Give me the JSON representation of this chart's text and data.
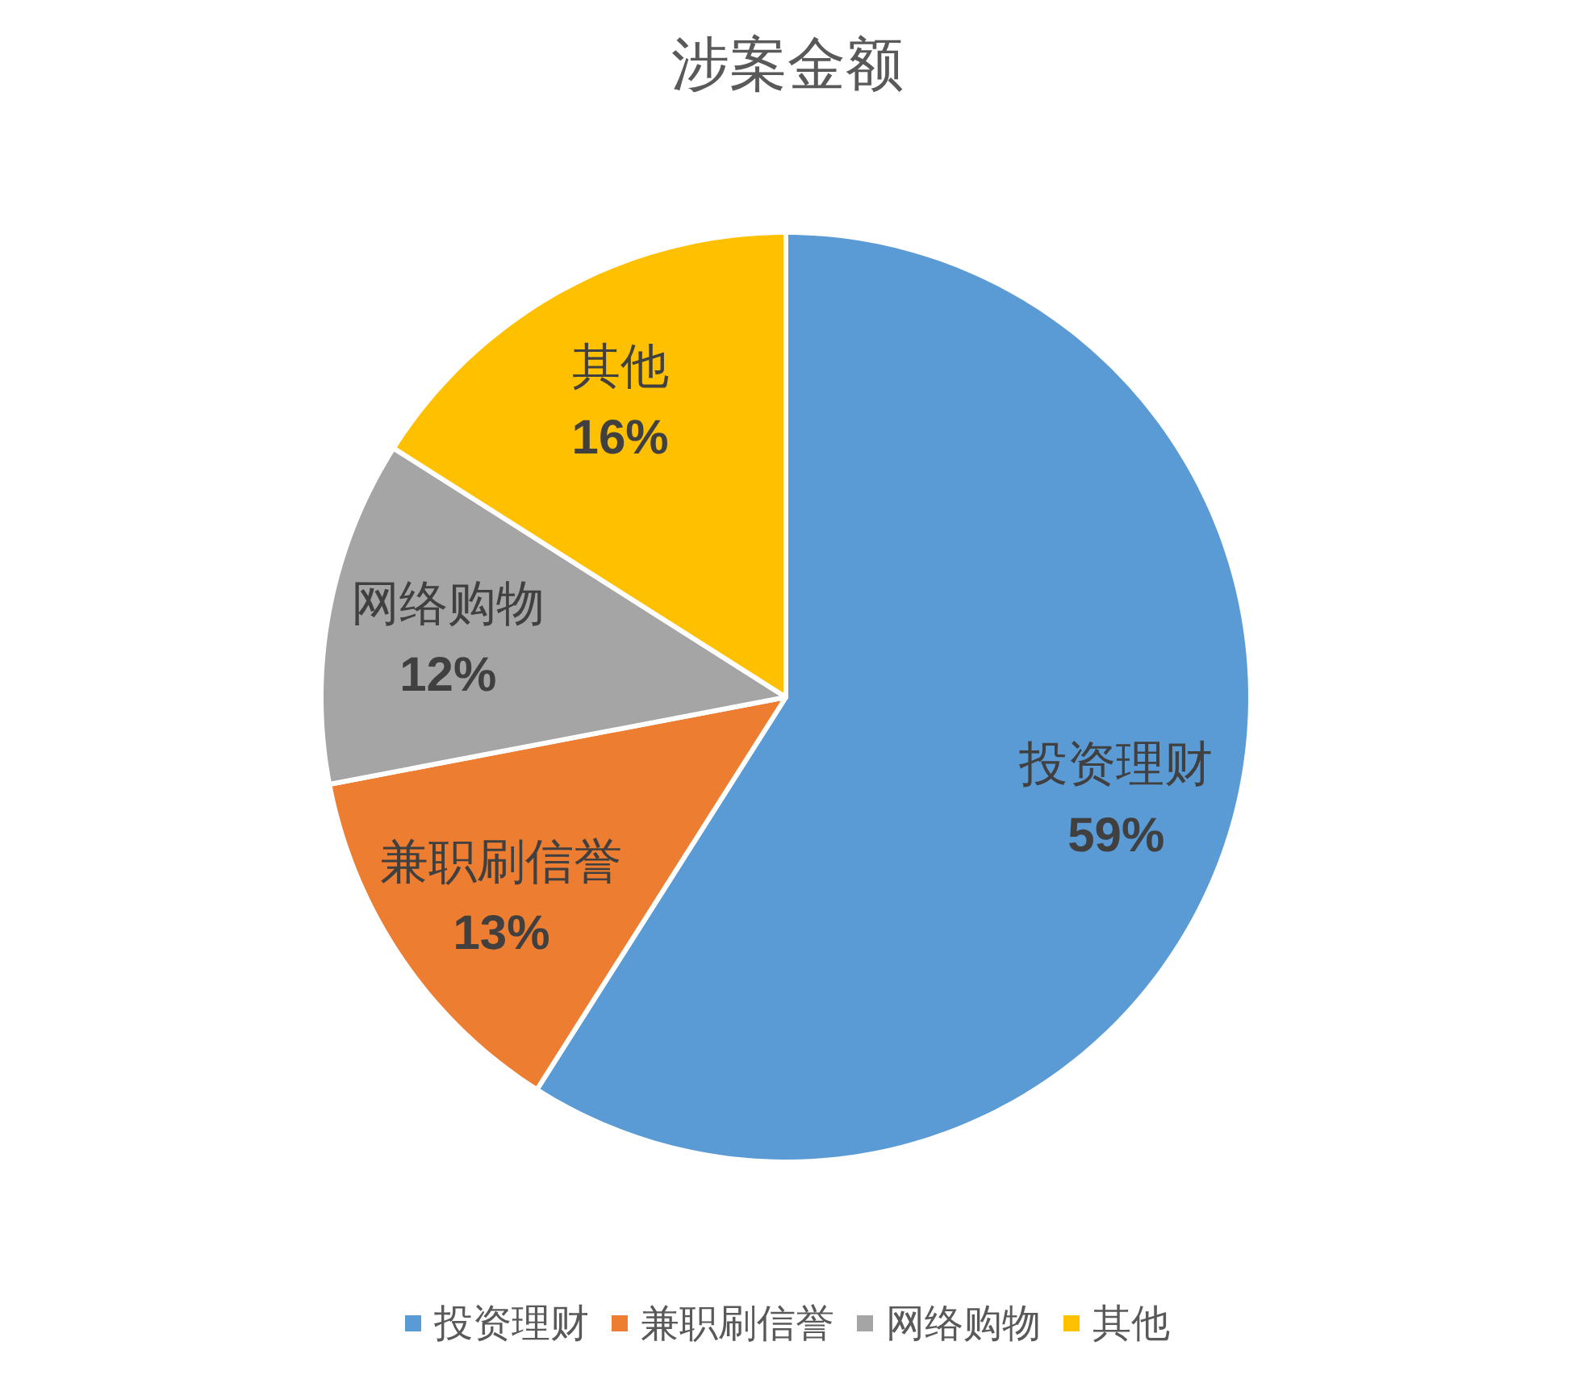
{
  "chart_data": {
    "type": "pie",
    "title": "涉案金额",
    "categories": [
      "投资理财",
      "兼职刷信誉",
      "网络购物",
      "其他"
    ],
    "values": [
      59,
      13,
      12,
      16
    ],
    "colors": [
      "#5b9bd5",
      "#ed7d31",
      "#a5a5a5",
      "#ffc000"
    ],
    "value_labels": [
      "59%",
      "13%",
      "12%",
      "16%"
    ],
    "legend": "bottom"
  }
}
